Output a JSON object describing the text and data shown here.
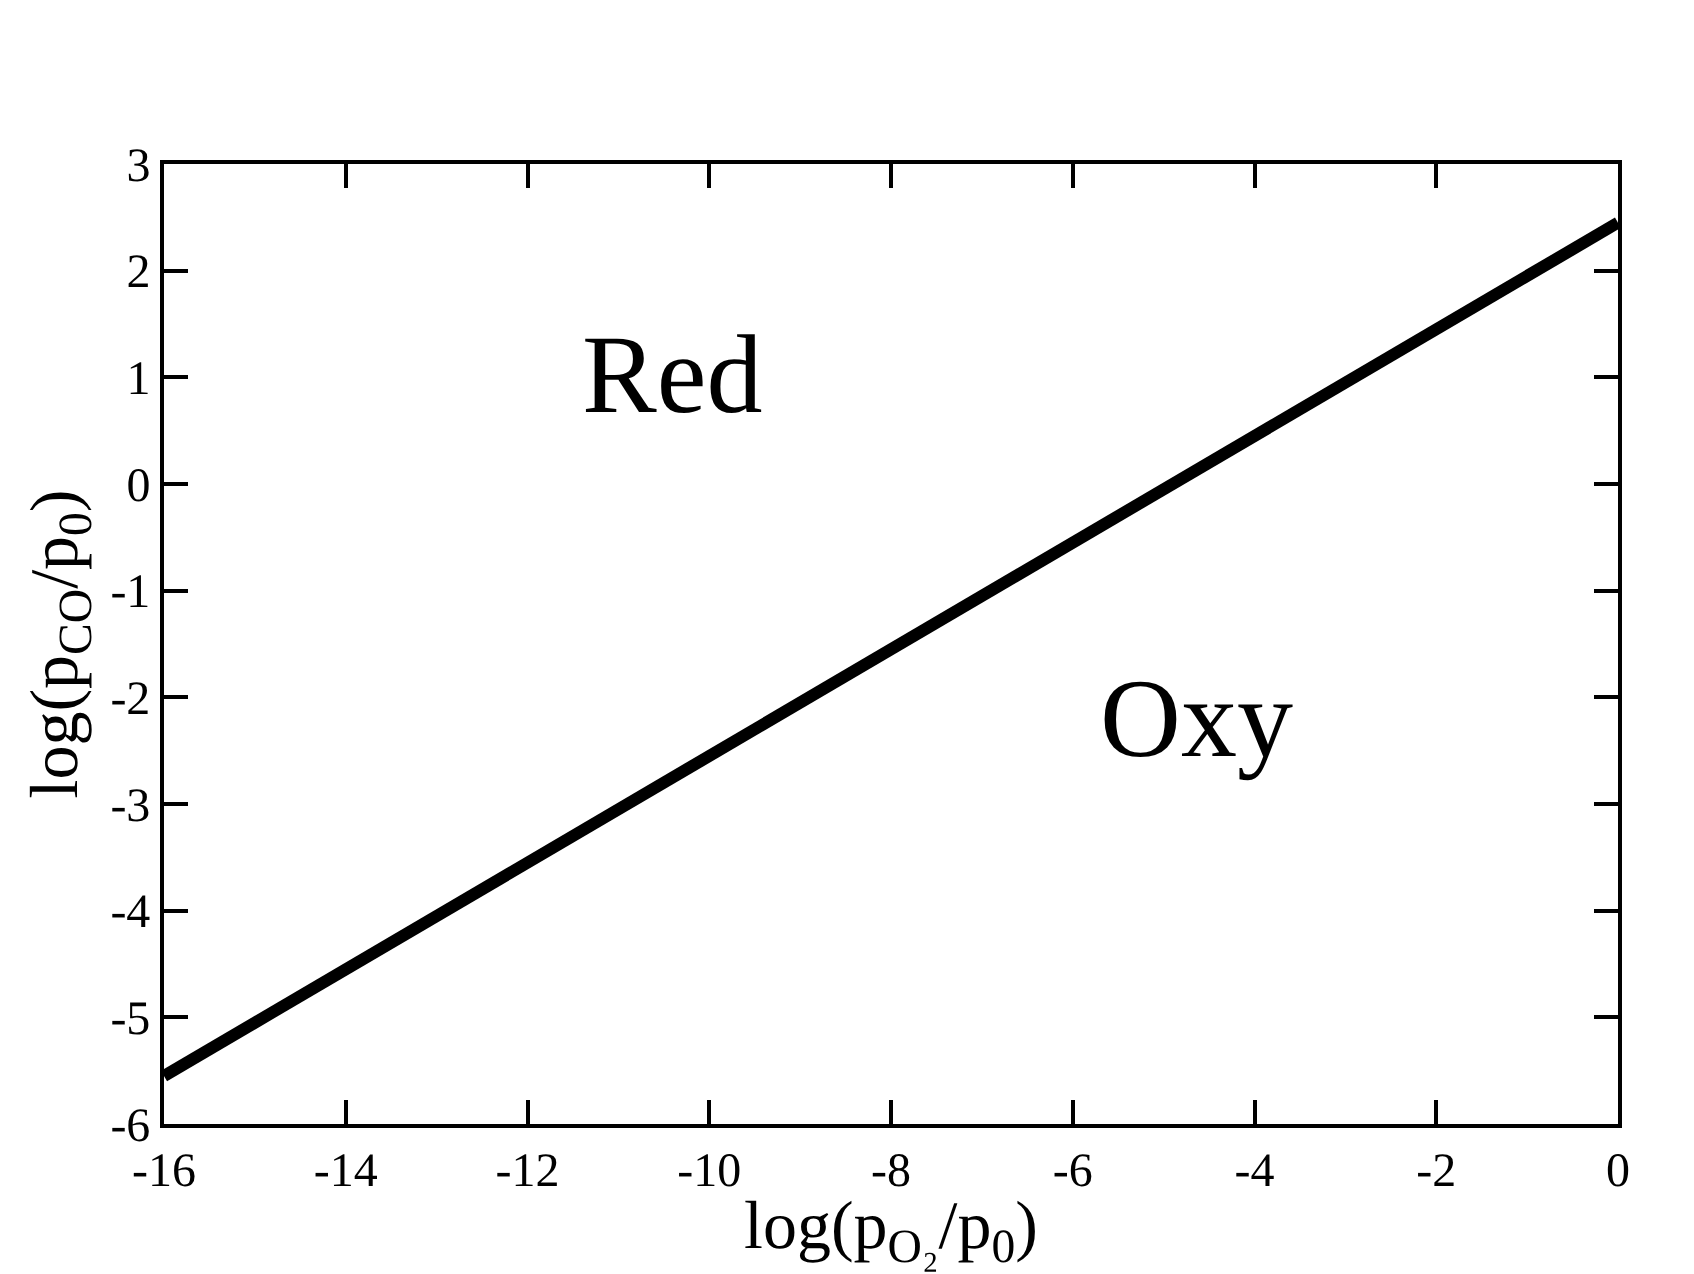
{
  "chart_data": {
    "type": "line",
    "xlabel": "log(p$_{O₂}$/p$_{0}$)",
    "ylabel": "log(p$_{CO}$/p$_{0}$)",
    "x": [
      -16,
      0
    ],
    "series": [
      {
        "color": "#000000",
        "values": [
          -5.55,
          2.45
        ]
      }
    ],
    "xlim": [
      -16,
      0
    ],
    "xticks": [
      -16,
      -14,
      -12,
      -10,
      -8,
      -6,
      -4,
      -2,
      0
    ],
    "ylim": [
      -6,
      3
    ],
    "yticks": [
      -6,
      -5,
      -4,
      -3,
      -2,
      -1,
      0,
      1,
      2,
      3
    ],
    "annotations": [
      "Red",
      "Oxy"
    ],
    "legend": false,
    "marker": "none",
    "line_style": "solid"
  }
}
